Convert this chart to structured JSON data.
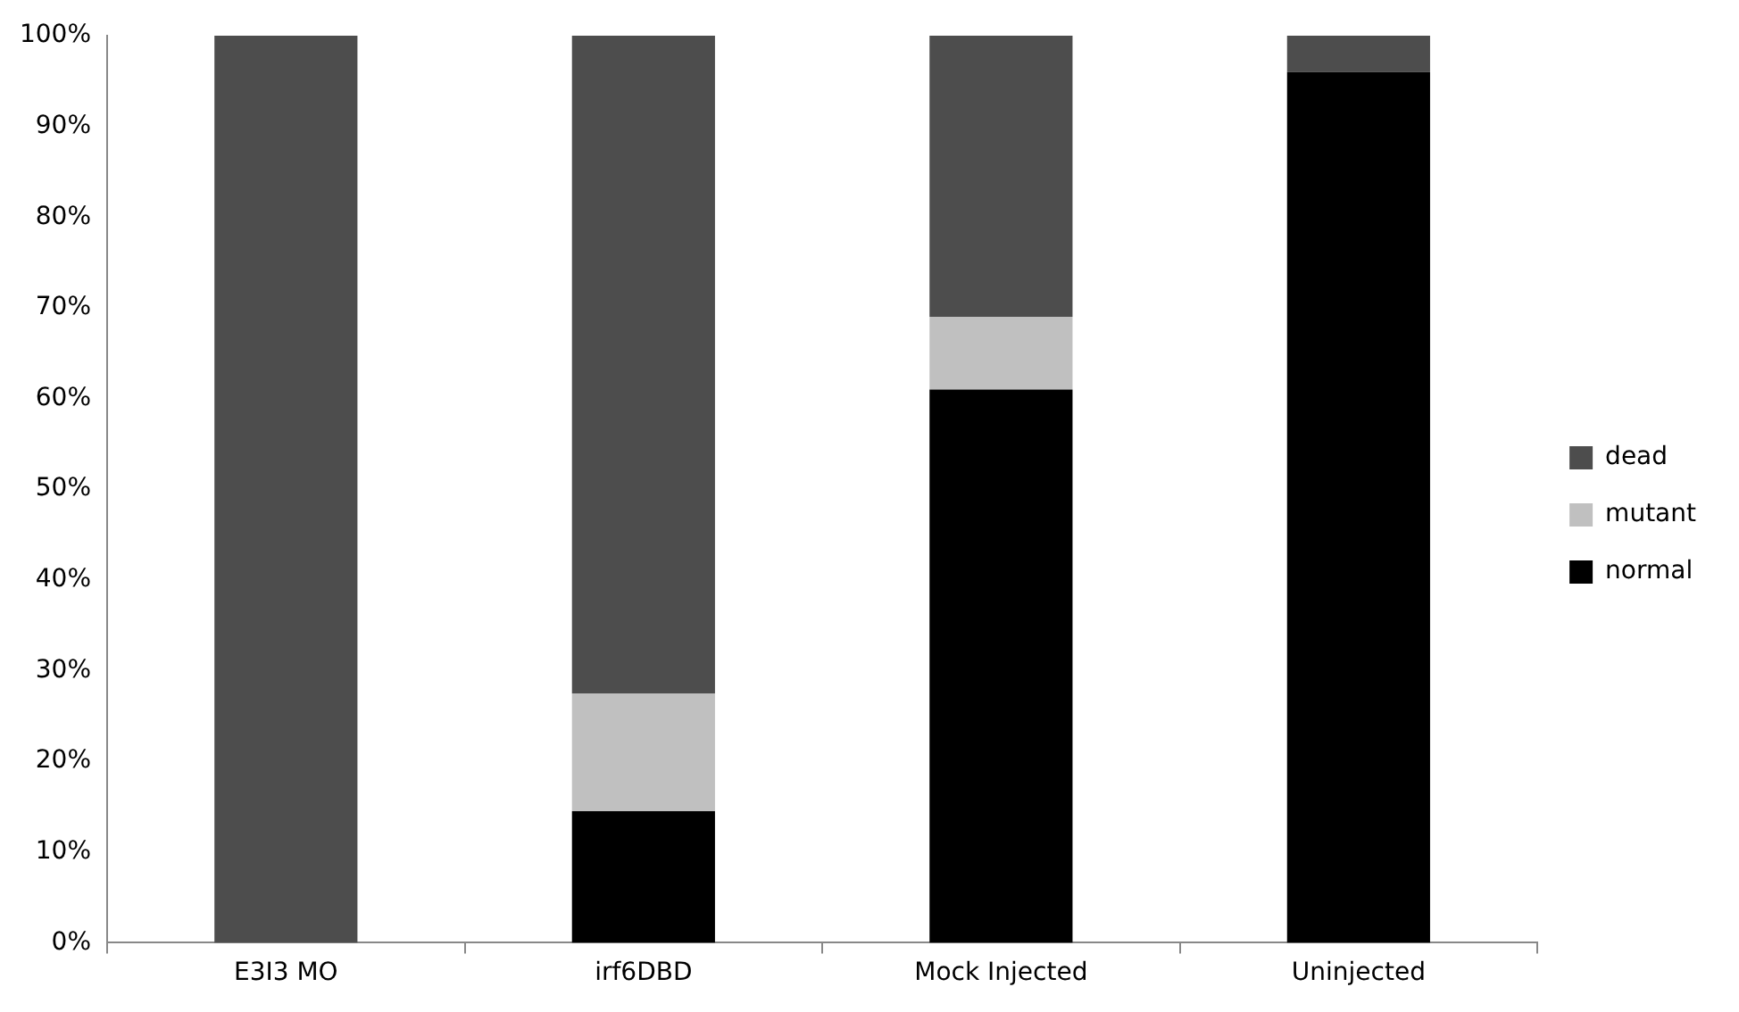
{
  "chart_data": {
    "type": "bar",
    "stacked": true,
    "categories": [
      "E3I3 MO",
      "irf6DBD",
      "Mock Injected",
      "Uninjected"
    ],
    "series": [
      {
        "name": "normal",
        "color": "#000000",
        "values": [
          0,
          14.5,
          61,
          96
        ]
      },
      {
        "name": "mutant",
        "color": "#c0c0c0",
        "values": [
          0,
          13,
          8,
          0
        ]
      },
      {
        "name": "dead",
        "color": "#4d4d4d",
        "values": [
          100,
          72.5,
          31,
          4
        ]
      }
    ],
    "ylim": [
      0,
      100
    ],
    "yticks": [
      {
        "value": 0,
        "label": "0%"
      },
      {
        "value": 10,
        "label": "10%"
      },
      {
        "value": 20,
        "label": "20%"
      },
      {
        "value": 30,
        "label": "30%"
      },
      {
        "value": 40,
        "label": "40%"
      },
      {
        "value": 50,
        "label": "50%"
      },
      {
        "value": 60,
        "label": "60%"
      },
      {
        "value": 70,
        "label": "70%"
      },
      {
        "value": 80,
        "label": "80%"
      },
      {
        "value": 90,
        "label": "90%"
      },
      {
        "value": 100,
        "label": "100%"
      }
    ],
    "grid": false,
    "legend": "right"
  }
}
